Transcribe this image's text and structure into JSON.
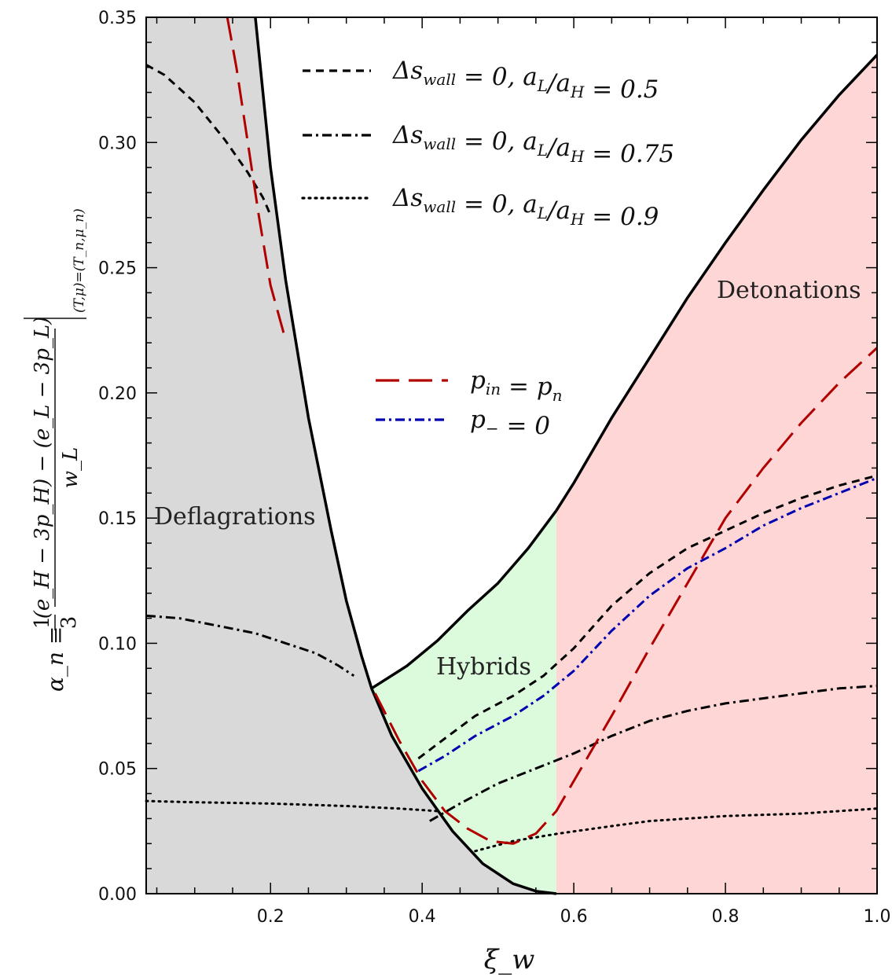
{
  "chart_data": {
    "type": "line",
    "xlabel": "ξ_w",
    "ylabel": {
      "lhs": "α_n ≡",
      "frac1_num": "1",
      "frac1_den": "3",
      "frac2_num": "(e_H − 3p_H) − (e_L − 3p_L)",
      "frac2_den": "w_L",
      "eval_subscript": "(T,μ)=(T_n,μ_n)"
    },
    "xlim": [
      0.036,
      1.0
    ],
    "ylim": [
      0.0,
      0.35
    ],
    "xticks": [
      {
        "value": 0.2,
        "label": "0.2"
      },
      {
        "value": 0.4,
        "label": "0.4"
      },
      {
        "value": 0.6,
        "label": "0.6"
      },
      {
        "value": 0.8,
        "label": "0.8"
      },
      {
        "value": 1.0,
        "label": "1.0"
      }
    ],
    "yticks": [
      {
        "value": 0.0,
        "label": "0.00"
      },
      {
        "value": 0.05,
        "label": "0.05"
      },
      {
        "value": 0.1,
        "label": "0.10"
      },
      {
        "value": 0.15,
        "label": "0.15"
      },
      {
        "value": 0.2,
        "label": "0.20"
      },
      {
        "value": 0.25,
        "label": "0.25"
      },
      {
        "value": 0.3,
        "label": "0.30"
      },
      {
        "value": 0.35,
        "label": "0.35"
      }
    ],
    "regions": [
      {
        "key": "deflagrations",
        "label": "Deflagrations",
        "color": "#d9d9d9"
      },
      {
        "key": "hybrids",
        "label": "Hybrids",
        "color": "#dcfadc"
      },
      {
        "key": "detonations",
        "label": "Detonations",
        "color": "#ffd6d6"
      }
    ],
    "boundaries": {
      "deflagration_hybrid": [
        [
          0.18,
          0.35
        ],
        [
          0.2,
          0.29
        ],
        [
          0.22,
          0.245
        ],
        [
          0.25,
          0.19
        ],
        [
          0.28,
          0.145
        ],
        [
          0.3,
          0.117
        ],
        [
          0.32,
          0.095
        ],
        [
          0.3333,
          0.082
        ],
        [
          0.36,
          0.063
        ],
        [
          0.4,
          0.042
        ],
        [
          0.44,
          0.025
        ],
        [
          0.48,
          0.012
        ],
        [
          0.52,
          0.004
        ],
        [
          0.55,
          0.001
        ],
        [
          0.577,
          0.0
        ]
      ],
      "hybrid_top": [
        [
          0.3333,
          0.082
        ],
        [
          0.38,
          0.091
        ],
        [
          0.42,
          0.101
        ],
        [
          0.46,
          0.113
        ],
        [
          0.5,
          0.124
        ],
        [
          0.54,
          0.138
        ],
        [
          0.577,
          0.153
        ]
      ],
      "detonation_top": [
        [
          0.577,
          0.153
        ],
        [
          0.6,
          0.164
        ],
        [
          0.65,
          0.19
        ],
        [
          0.7,
          0.214
        ],
        [
          0.75,
          0.238
        ],
        [
          0.8,
          0.26
        ],
        [
          0.85,
          0.281
        ],
        [
          0.9,
          0.301
        ],
        [
          0.95,
          0.319
        ],
        [
          1.0,
          0.335
        ]
      ],
      "hybrid_detonation_x": 0.577
    },
    "series": [
      {
        "key": "ds_05",
        "style": "dashed",
        "color": "#000000",
        "legend": {
          "lhs": "Δs",
          "sub": "wall",
          "mid": " = 0,   a",
          "sub2": "L",
          "mid2": "/a",
          "sub3": "H",
          "rhs": " = 0.5"
        },
        "segments": [
          [
            [
              0.036,
              0.331
            ],
            [
              0.06,
              0.327
            ],
            [
              0.1,
              0.316
            ],
            [
              0.14,
              0.301
            ],
            [
              0.17,
              0.288
            ],
            [
              0.19,
              0.278
            ],
            [
              0.2,
              0.271
            ]
          ],
          [
            [
              0.395,
              0.054
            ],
            [
              0.43,
              0.062
            ],
            [
              0.47,
              0.071
            ],
            [
              0.52,
              0.079
            ],
            [
              0.56,
              0.087
            ],
            [
              0.6,
              0.098
            ],
            [
              0.65,
              0.115
            ],
            [
              0.7,
              0.128
            ],
            [
              0.75,
              0.138
            ],
            [
              0.8,
              0.145
            ],
            [
              0.85,
              0.152
            ],
            [
              0.9,
              0.158
            ],
            [
              0.95,
              0.163
            ],
            [
              1.0,
              0.167
            ]
          ]
        ]
      },
      {
        "key": "ds_075",
        "style": "dashdot",
        "color": "#000000",
        "legend": {
          "lhs": "Δs",
          "sub": "wall",
          "mid": " = 0,   a",
          "sub2": "L",
          "mid2": "/a",
          "sub3": "H",
          "rhs": " = 0.75"
        },
        "segments": [
          [
            [
              0.036,
              0.111
            ],
            [
              0.08,
              0.11
            ],
            [
              0.13,
              0.107
            ],
            [
              0.18,
              0.104
            ],
            [
              0.22,
              0.1
            ],
            [
              0.26,
              0.096
            ],
            [
              0.29,
              0.091
            ],
            [
              0.31,
              0.087
            ]
          ],
          [
            [
              0.41,
              0.029
            ],
            [
              0.45,
              0.036
            ],
            [
              0.5,
              0.044
            ],
            [
              0.55,
              0.05
            ],
            [
              0.6,
              0.056
            ],
            [
              0.65,
              0.063
            ],
            [
              0.7,
              0.069
            ],
            [
              0.75,
              0.073
            ],
            [
              0.8,
              0.076
            ],
            [
              0.85,
              0.078
            ],
            [
              0.9,
              0.08
            ],
            [
              0.95,
              0.082
            ],
            [
              1.0,
              0.083
            ]
          ]
        ]
      },
      {
        "key": "ds_09",
        "style": "dotted",
        "color": "#000000",
        "legend": {
          "lhs": "Δs",
          "sub": "wall",
          "mid": " = 0,   a",
          "sub2": "L",
          "mid2": "/a",
          "sub3": "H",
          "rhs": " = 0.9"
        },
        "segments": [
          [
            [
              0.036,
              0.037
            ],
            [
              0.1,
              0.0365
            ],
            [
              0.2,
              0.036
            ],
            [
              0.3,
              0.035
            ],
            [
              0.37,
              0.034
            ],
            [
              0.42,
              0.033
            ]
          ],
          [
            [
              0.47,
              0.017
            ],
            [
              0.52,
              0.021
            ],
            [
              0.58,
              0.024
            ],
            [
              0.65,
              0.027
            ],
            [
              0.7,
              0.029
            ],
            [
              0.8,
              0.031
            ],
            [
              0.9,
              0.032
            ],
            [
              1.0,
              0.034
            ]
          ]
        ]
      },
      {
        "key": "pin_pn",
        "style": "longdash",
        "color": "#b00000",
        "legend": {
          "lhs": "p",
          "sub": "in",
          "mid": " = p",
          "sub2": "n",
          "rhs": ""
        },
        "segments": [
          [
            [
              0.143,
              0.35
            ],
            [
              0.155,
              0.33
            ],
            [
              0.17,
              0.3
            ],
            [
              0.185,
              0.27
            ],
            [
              0.2,
              0.243
            ],
            [
              0.22,
              0.221
            ]
          ],
          [
            [
              0.338,
              0.08
            ],
            [
              0.37,
              0.061
            ],
            [
              0.4,
              0.045
            ],
            [
              0.43,
              0.033
            ],
            [
              0.46,
              0.026
            ],
            [
              0.49,
              0.021
            ],
            [
              0.52,
              0.02
            ],
            [
              0.55,
              0.024
            ],
            [
              0.577,
              0.033
            ],
            [
              0.6,
              0.045
            ],
            [
              0.65,
              0.071
            ],
            [
              0.7,
              0.098
            ],
            [
              0.75,
              0.124
            ],
            [
              0.8,
              0.15
            ],
            [
              0.85,
              0.17
            ],
            [
              0.9,
              0.188
            ],
            [
              0.95,
              0.204
            ],
            [
              1.0,
              0.218
            ]
          ]
        ]
      },
      {
        "key": "pminus",
        "style": "dashdot",
        "color": "#0000b0",
        "legend": {
          "lhs": "p",
          "sub": "−",
          "mid": " = 0",
          "sub2": "",
          "rhs": ""
        },
        "segments": [
          [
            [
              0.395,
              0.049
            ],
            [
              0.43,
              0.055
            ],
            [
              0.47,
              0.063
            ],
            [
              0.52,
              0.071
            ],
            [
              0.56,
              0.079
            ],
            [
              0.6,
              0.089
            ],
            [
              0.65,
              0.105
            ],
            [
              0.7,
              0.119
            ],
            [
              0.75,
              0.13
            ],
            [
              0.8,
              0.138
            ],
            [
              0.85,
              0.147
            ],
            [
              0.9,
              0.154
            ],
            [
              0.95,
              0.16
            ],
            [
              1.0,
              0.166
            ]
          ]
        ]
      }
    ]
  }
}
